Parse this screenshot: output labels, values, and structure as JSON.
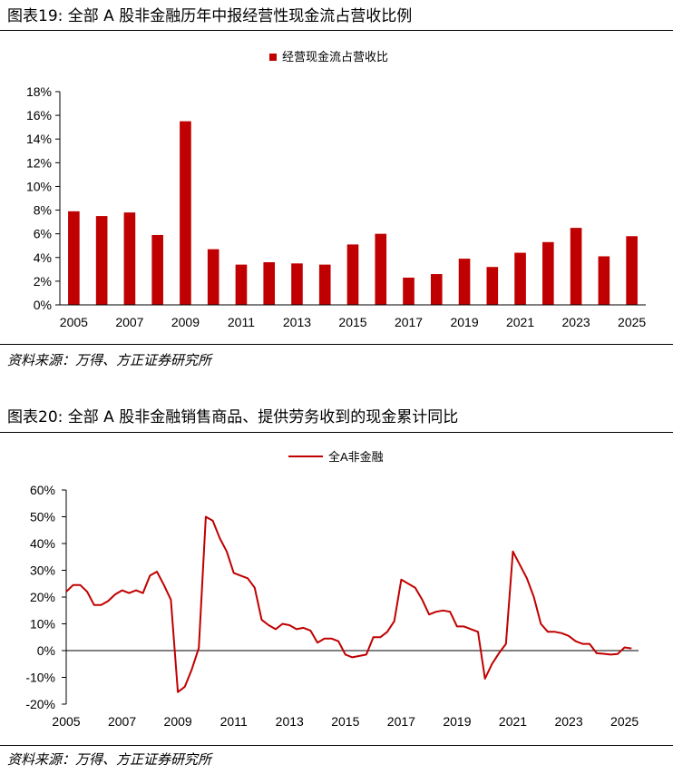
{
  "figure1": {
    "title": "图表19: 全部 A 股非金融历年中报经营性现金流占营收比例",
    "source": "资料来源：万得、方正证券研究所"
  },
  "figure2": {
    "title": "图表20: 全部 A 股非金融销售商品、提供劳务收到的现金累计同比",
    "source": "资料来源：万得、方正证券研究所"
  },
  "colors": {
    "series": "#C00000",
    "axis": "#000000"
  },
  "chart_data": [
    {
      "type": "bar",
      "title": "",
      "legend": [
        "经营现金流占营收比"
      ],
      "legend_position": "top-center",
      "series": [
        {
          "name": "经营现金流占营收比",
          "values": [
            7.9,
            7.5,
            7.8,
            5.9,
            15.5,
            4.7,
            3.4,
            3.6,
            3.5,
            3.4,
            5.1,
            6.0,
            2.3,
            2.6,
            3.9,
            3.2,
            4.4,
            5.3,
            6.5,
            4.1,
            5.8
          ]
        }
      ],
      "categories": [
        "2005",
        "2006",
        "2007",
        "2008",
        "2009",
        "2010",
        "2011",
        "2012",
        "2013",
        "2014",
        "2015",
        "2016",
        "2017",
        "2018",
        "2019",
        "2020",
        "2021",
        "2022",
        "2023",
        "2024",
        "2025"
      ],
      "x_tick_labels": [
        "2005",
        "2007",
        "2009",
        "2011",
        "2013",
        "2015",
        "2017",
        "2019",
        "2021",
        "2023",
        "2025"
      ],
      "y_tick_labels": [
        "0%",
        "2%",
        "4%",
        "6%",
        "8%",
        "10%",
        "12%",
        "14%",
        "16%",
        "18%"
      ],
      "ylim": [
        0,
        18
      ],
      "grid": false,
      "xlabel": "",
      "ylabel": ""
    },
    {
      "type": "line",
      "title": "",
      "legend": [
        "全A非金融"
      ],
      "legend_position": "top-center",
      "series": [
        {
          "name": "全A非金融",
          "x": [
            2005.0,
            2005.25,
            2005.5,
            2005.75,
            2006.0,
            2006.25,
            2006.5,
            2006.75,
            2007.0,
            2007.25,
            2007.5,
            2007.75,
            2008.0,
            2008.25,
            2008.5,
            2008.75,
            2009.0,
            2009.25,
            2009.5,
            2009.75,
            2010.0,
            2010.25,
            2010.5,
            2010.75,
            2011.0,
            2011.25,
            2011.5,
            2011.75,
            2012.0,
            2012.25,
            2012.5,
            2012.75,
            2013.0,
            2013.25,
            2013.5,
            2013.75,
            2014.0,
            2014.25,
            2014.5,
            2014.75,
            2015.0,
            2015.25,
            2015.5,
            2015.75,
            2016.0,
            2016.25,
            2016.5,
            2016.75,
            2017.0,
            2017.25,
            2017.5,
            2017.75,
            2018.0,
            2018.25,
            2018.5,
            2018.75,
            2019.0,
            2019.25,
            2019.5,
            2019.75,
            2020.0,
            2020.25,
            2020.5,
            2020.75,
            2021.0,
            2021.25,
            2021.5,
            2021.75,
            2022.0,
            2022.25,
            2022.5,
            2022.75,
            2023.0,
            2023.25,
            2023.5,
            2023.75,
            2024.0,
            2024.25,
            2024.5,
            2024.75,
            2025.0,
            2025.25
          ],
          "values": [
            22,
            24.5,
            24.5,
            22,
            17,
            17,
            18.5,
            21,
            22.5,
            21.5,
            22.5,
            21.5,
            28,
            29.5,
            24.5,
            19,
            -15.5,
            -13.5,
            -7,
            1,
            50,
            48.5,
            42,
            37,
            29,
            28,
            27,
            23.5,
            11.5,
            9.5,
            8,
            10,
            9.5,
            8,
            8.5,
            7.5,
            3,
            4.5,
            4.5,
            3.5,
            -1.5,
            -2.5,
            -2,
            -1.5,
            5,
            5,
            7,
            11,
            26.5,
            25,
            23.5,
            19,
            13.5,
            14.5,
            15,
            14.5,
            9,
            9,
            8,
            7,
            -10.5,
            -5,
            -1,
            2.5,
            37,
            32,
            27,
            20,
            10,
            7,
            7,
            6.5,
            5.5,
            3.5,
            2.5,
            2.5,
            -1,
            -1.2,
            -1.5,
            -1.3,
            1.2,
            0.8
          ]
        }
      ],
      "x_tick_labels": [
        "2005",
        "2007",
        "2009",
        "2011",
        "2013",
        "2015",
        "2017",
        "2019",
        "2021",
        "2023",
        "2025"
      ],
      "y_tick_labels": [
        "-20%",
        "-10%",
        "0%",
        "10%",
        "20%",
        "30%",
        "40%",
        "50%",
        "60%"
      ],
      "xlim": [
        2005,
        2025.5
      ],
      "ylim": [
        -20,
        60
      ],
      "grid": false,
      "xlabel": "",
      "ylabel": ""
    }
  ]
}
